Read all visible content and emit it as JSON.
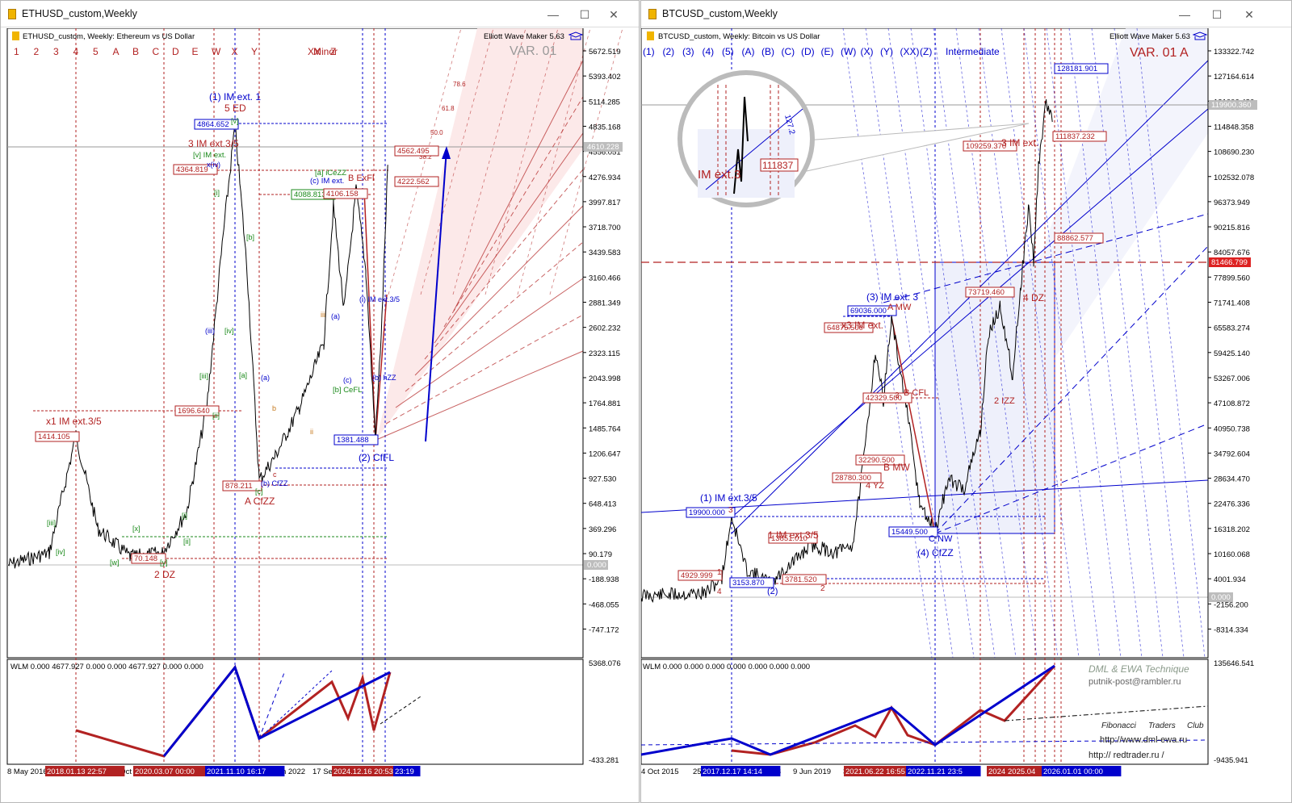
{
  "left": {
    "window_title": "ETHUSD_custom,Weekly",
    "header": "ETHUSD_custom, Weekly:  Ethereum vs US Dollar",
    "plugin": "Elliott Wave Maker 5.63",
    "variant": "VAR. 01",
    "degree_label": "Minor",
    "wave_buttons": [
      "1",
      "2",
      "3",
      "4",
      "5",
      "A",
      "B",
      "C",
      "D",
      "E",
      "W",
      "X",
      "Y",
      "XX",
      "Z"
    ],
    "price_axis": [
      "5672.519",
      "5393.402",
      "5114.285",
      "4835.168",
      "4556.051",
      "4276.934",
      "3997.817",
      "3718.700",
      "3439.583",
      "3160.466",
      "2881.349",
      "2602.232",
      "2323.115",
      "2043.998",
      "1764.881",
      "1485.764",
      "1206.647",
      "927.530",
      "648.413",
      "369.296",
      "90.179",
      "-188.938",
      "-468.055",
      "-747.172"
    ],
    "current_price": "4610.228",
    "zero_tag": "0.000",
    "indicator_header": "WLM 0.000 4677.927 0.000 0.000 4677.927 0.000 0.000",
    "ind_axis_top": "5368.076",
    "ind_axis_bottom": "-433.281",
    "time_labels": [
      "8 May 2016",
      "21 Oct",
      "6 Jun 2022",
      "17 Sep"
    ],
    "date_tags": [
      "2018.01.13 22:57",
      "2020.03.07 00:00",
      "2021.11.10 16:17",
      "2024.12.16 20:53",
      "23:19"
    ],
    "price_tags": [
      "4864.652",
      "4364.819",
      "4088.813",
      "4106.158",
      "4562.495",
      "4222.562",
      "1696.640",
      "1414.105",
      "1381.488",
      "878.211",
      "70.148"
    ],
    "wave_labels": [
      "(1) IM ext. 1",
      "5 ED",
      "3 IM ext.3/5",
      "[v] IM ext.",
      "[a] iCeZZ",
      "(c) IM ext.",
      "B ExFl",
      "x1 IM ext.3/5",
      "2 DZ",
      "A CfZZ",
      "(2) CfFL",
      "[b] CeFL",
      "(b) CfZZ",
      "(i) IM ext.3/5",
      "(b) hZZ",
      "[iii]",
      "[iv]",
      "[iii]",
      "[iv]",
      "[b]",
      "[i]",
      "[ii]",
      "[x]",
      "[w]",
      "[y]",
      "[c]",
      "[a]",
      "(a)",
      "(c)",
      "(a)",
      "iii",
      "ii",
      "c",
      "b",
      "x(iv)",
      "(iii)",
      "[v]",
      "[ii]",
      "[i]"
    ]
  },
  "right": {
    "window_title": "BTCUSD_custom,Weekly",
    "header": "BTCUSD_custom, Weekly:  Bitcoin vs US Dollar",
    "plugin": "Elliott Wave Maker 5.63",
    "variant": "VAR. 01 A",
    "degree_label": "Intermediate",
    "wave_buttons": [
      "(1)",
      "(2)",
      "(3)",
      "(4)",
      "(5)",
      "(A)",
      "(B)",
      "(C)",
      "(D)",
      "(E)",
      "(W)",
      "(X)",
      "(Y)",
      "(XX)",
      "(Z)"
    ],
    "price_axis": [
      "133322.742",
      "127164.614",
      "121006.486",
      "114848.358",
      "108690.230",
      "102532.078",
      "96373.949",
      "90215.816",
      "84057.676",
      "77899.560",
      "71741.408",
      "65583.274",
      "59425.140",
      "53267.006",
      "47108.872",
      "40950.738",
      "34792.604",
      "28634.470",
      "22476.336",
      "16318.202",
      "10160.068",
      "4001.934",
      "-2156.200",
      "-8314.334"
    ],
    "current_price": "119900.360",
    "level_tag": "81466.799",
    "zero_tag": "0.000",
    "indicator_header": "WLM 0.000 0.000 0.000 0.000 0.000 0.000 0.000",
    "ind_axis_top": "135646.541",
    "ind_axis_bottom": "-9435.941",
    "time_labels": [
      "4 Oct 2015",
      "25",
      "2018",
      "9 Jun 2019",
      "3"
    ],
    "date_tags": [
      "2017.12.17 14:14",
      "2021.06.22 16:55",
      "2022.11.21 23:5",
      "2024",
      "2025.04",
      "2026.01.01 00:00"
    ],
    "price_tags": [
      "128181.901",
      "109259.370",
      "111837.232",
      "88862.577",
      "69036.000",
      "64875.500",
      "73719.460",
      "19900.000",
      "13851.010",
      "15449.500",
      "28780.300",
      "32290.500",
      "42329.500",
      "4929.999",
      "3153.870",
      "3781.520"
    ],
    "wave_labels": [
      "(1) IM ext.3/5",
      "(3) IM ext. 3",
      "x3 IM ext.",
      "1 IM ext.3/5",
      "3 IM ext.",
      "4 DZ",
      "(4) CfZZ",
      "C NW",
      "B MW",
      "A MW",
      "4 YZ",
      "2 IZZ",
      "(2)",
      "3",
      "4",
      "2",
      "1",
      "3",
      "B CFL"
    ],
    "magnifier": {
      "label": "IM ext.3",
      "tag": "111837",
      "fib": "127.2"
    },
    "watermark": [
      "DML & EWA Technique",
      "putnik-post@rambler.ru",
      "Fibonacci",
      "Traders",
      "Club",
      "http://www.dml-ewa.ru",
      "http:// redtrader.ru /"
    ]
  },
  "colors": {
    "bull": "#0000cc",
    "bear": "#b22222",
    "green_label": "#1b8a1b",
    "blue_label": "#1f5fd0",
    "candle": "#000000"
  }
}
